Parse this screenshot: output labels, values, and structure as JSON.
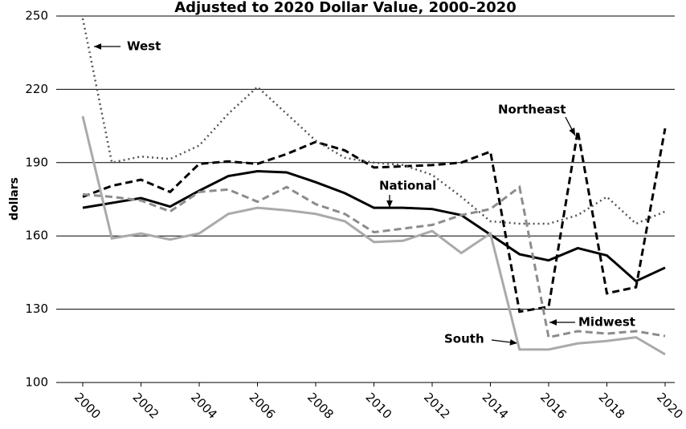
{
  "chart_data": {
    "type": "line",
    "title": "Adjusted to 2020 Dollar Value, 2000–2020",
    "y_label": "dollars",
    "x": [
      2000,
      2001,
      2002,
      2003,
      2004,
      2005,
      2006,
      2007,
      2008,
      2009,
      2010,
      2011,
      2012,
      2013,
      2014,
      2015,
      2016,
      2017,
      2018,
      2019,
      2020
    ],
    "xlim": [
      2000,
      2020
    ],
    "xticks": [
      2000,
      2002,
      2004,
      2006,
      2008,
      2010,
      2012,
      2014,
      2016,
      2018,
      2020
    ],
    "ylim": [
      100,
      250
    ],
    "yticks": [
      100,
      130,
      160,
      190,
      220,
      250
    ],
    "grid": true,
    "series": [
      {
        "name": "National",
        "color": "#000000",
        "style": "solid",
        "values": [
          171.5,
          173.5,
          175.5,
          172,
          178.5,
          184.5,
          186.5,
          186,
          182,
          177.5,
          171.5,
          171.5,
          171,
          168.5,
          160.5,
          152.5,
          150,
          155,
          152,
          141.5,
          147
        ]
      },
      {
        "name": "Northeast",
        "color": "#000000",
        "style": "dashed",
        "values": [
          176,
          180.5,
          183,
          178,
          189.5,
          190.5,
          189.5,
          193.5,
          198.5,
          195,
          188,
          188.5,
          189,
          190,
          194.5,
          129,
          131,
          203,
          136.5,
          139,
          204
        ]
      },
      {
        "name": "West",
        "color": "#555555",
        "style": "dotted",
        "values": [
          249,
          190,
          192.5,
          191.5,
          197,
          210,
          221,
          210,
          199,
          192,
          190,
          189,
          185,
          176,
          166,
          165,
          165,
          168.5,
          176,
          165,
          170
        ]
      },
      {
        "name": "Midwest",
        "color": "#8c8c8c",
        "style": "dashed",
        "values": [
          177,
          176,
          174.5,
          170,
          178,
          179,
          174,
          180,
          173,
          169,
          161.5,
          163,
          164.5,
          168.5,
          171,
          180,
          118.5,
          121,
          120,
          121,
          119
        ]
      },
      {
        "name": "South",
        "color": "#aaaaaa",
        "style": "solid",
        "values": [
          209,
          159,
          161,
          158.5,
          161,
          169,
          171.5,
          170.5,
          169,
          166,
          157.5,
          158,
          162,
          153,
          161,
          113.5,
          113.5,
          116,
          117,
          118.5,
          111.5
        ]
      }
    ]
  }
}
